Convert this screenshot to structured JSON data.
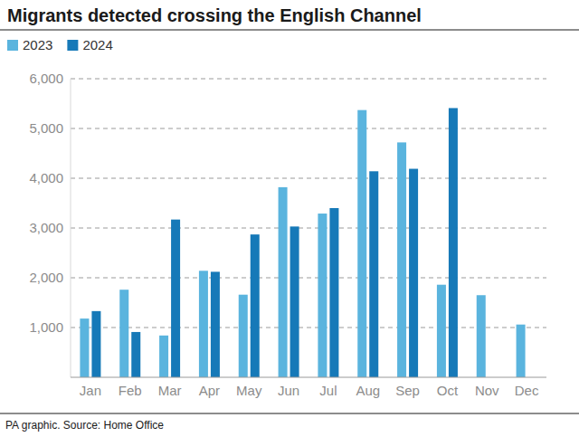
{
  "chart_data": {
    "type": "bar",
    "title": "Migrants detected crossing the English Channel",
    "source": "PA graphic. Source: Home Office",
    "categories": [
      "Jan",
      "Feb",
      "Mar",
      "Apr",
      "May",
      "Jun",
      "Jul",
      "Aug",
      "Sep",
      "Oct",
      "Nov",
      "Dec"
    ],
    "series": [
      {
        "name": "2023",
        "color": "#5ab4de",
        "values": [
          1180,
          1760,
          840,
          2140,
          1660,
          3820,
          3290,
          5370,
          4720,
          1860,
          1650,
          1060
        ]
      },
      {
        "name": "2024",
        "color": "#1679b8",
        "values": [
          1330,
          910,
          3170,
          2120,
          2870,
          3030,
          3400,
          4140,
          4190,
          5410,
          null,
          null
        ]
      }
    ],
    "ylim": [
      0,
      6000
    ],
    "yticks": [
      {
        "value": 1000,
        "label": "1,000"
      },
      {
        "value": 2000,
        "label": "2,000"
      },
      {
        "value": 3000,
        "label": "3,000"
      },
      {
        "value": 4000,
        "label": "4,000"
      },
      {
        "value": 5000,
        "label": "5,000"
      },
      {
        "value": 6000,
        "label": "6,000"
      }
    ],
    "grid": true,
    "legend": "top-left"
  }
}
